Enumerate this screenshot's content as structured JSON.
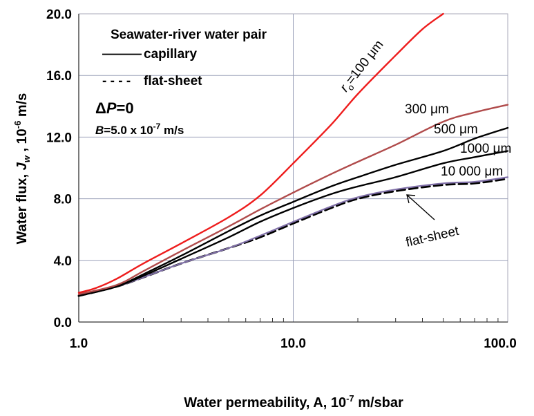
{
  "chart_data": {
    "type": "line",
    "x_scale": "log",
    "xlim": [
      1.0,
      100.0
    ],
    "ylim": [
      0.0,
      20.0
    ],
    "x_ticks": [
      "1.0",
      "10.0",
      "100.0"
    ],
    "y_ticks": [
      "0.0",
      "4.0",
      "8.0",
      "12.0",
      "16.0",
      "20.0"
    ],
    "xlabel": "Water permeability, A, 10",
    "xlabel_sup": "-7",
    "xlabel_tail": " m/sbar",
    "ylabel_a": "Water flux,  ",
    "ylabel_var": "J",
    "ylabel_sub": "w",
    "ylabel_b": " , 10",
    "ylabel_sup": "-6",
    "ylabel_tail": " m/s",
    "legend": {
      "title": "Seawater-river water pair",
      "solid_label": "capillary",
      "dashed_label": "flat-sheet",
      "solid_glyph": "———",
      "dashed_glyph": "- - - -"
    },
    "conditions": {
      "delta": "Δ",
      "p": "P",
      "p_value": "=0",
      "b": "B",
      "b_value": "=5.0 x 10",
      "b_sup": "-7",
      "b_unit": " m/s"
    },
    "curve_labels": {
      "r_symbol": "r",
      "r_sub": "o",
      "r100": "=100 μm",
      "r300": "300 μm",
      "r500": "500 μm",
      "r1000": "1000 μm",
      "r10000": "10 000 μm",
      "flat": "flat-sheet"
    },
    "series": [
      {
        "name": "r_o=100 μm",
        "color": "#ee1c1c",
        "dash": false,
        "x": [
          1.0,
          1.2,
          1.5,
          2.0,
          3.0,
          5.0,
          7.0,
          10.0,
          15.0,
          20.0,
          30.0,
          40.0,
          50.0
        ],
        "y": [
          1.9,
          2.2,
          2.8,
          3.8,
          5.1,
          6.8,
          8.2,
          10.3,
          12.8,
          14.8,
          17.3,
          19.0,
          20.0
        ]
      },
      {
        "name": "300 μm",
        "color": "#b04b4b",
        "dash": false,
        "x": [
          1.0,
          1.5,
          2.0,
          3.0,
          5.0,
          7.0,
          10.0,
          15.0,
          20.0,
          30.0,
          50.0,
          70.0,
          100.0
        ],
        "y": [
          1.8,
          2.4,
          3.3,
          4.6,
          6.2,
          7.3,
          8.4,
          9.6,
          10.4,
          11.5,
          13.0,
          13.6,
          14.1
        ]
      },
      {
        "name": "500 μm",
        "color": "#000000",
        "dash": false,
        "x": [
          1.0,
          1.5,
          2.0,
          3.0,
          5.0,
          7.0,
          10.0,
          15.0,
          20.0,
          30.0,
          50.0,
          70.0,
          100.0
        ],
        "y": [
          1.7,
          2.3,
          3.1,
          4.3,
          5.9,
          6.9,
          7.8,
          8.8,
          9.4,
          10.2,
          11.1,
          11.9,
          12.6
        ]
      },
      {
        "name": "1000 μm",
        "color": "#000000",
        "dash": false,
        "x": [
          1.0,
          1.5,
          2.0,
          3.0,
          5.0,
          7.0,
          10.0,
          15.0,
          20.0,
          30.0,
          50.0,
          70.0,
          100.0
        ],
        "y": [
          1.7,
          2.3,
          3.0,
          4.1,
          5.5,
          6.5,
          7.4,
          8.3,
          8.8,
          9.4,
          10.3,
          10.7,
          11.1
        ]
      },
      {
        "name": "10 000 μm",
        "color": "#8070a8",
        "dash": false,
        "x": [
          1.0,
          1.5,
          2.0,
          3.0,
          5.0,
          7.0,
          10.0,
          15.0,
          20.0,
          30.0,
          50.0,
          70.0,
          100.0
        ],
        "y": [
          1.7,
          2.3,
          2.9,
          3.8,
          4.8,
          5.6,
          6.5,
          7.5,
          8.1,
          8.6,
          9.0,
          9.1,
          9.4
        ]
      },
      {
        "name": "flat-sheet",
        "color": "#000000",
        "dash": true,
        "x": [
          1.0,
          1.5,
          2.0,
          3.0,
          5.0,
          7.0,
          10.0,
          15.0,
          20.0,
          30.0,
          50.0,
          70.0,
          100.0
        ],
        "y": [
          1.7,
          2.3,
          2.9,
          3.8,
          4.8,
          5.5,
          6.4,
          7.4,
          8.0,
          8.5,
          8.9,
          9.0,
          9.3
        ]
      }
    ]
  }
}
